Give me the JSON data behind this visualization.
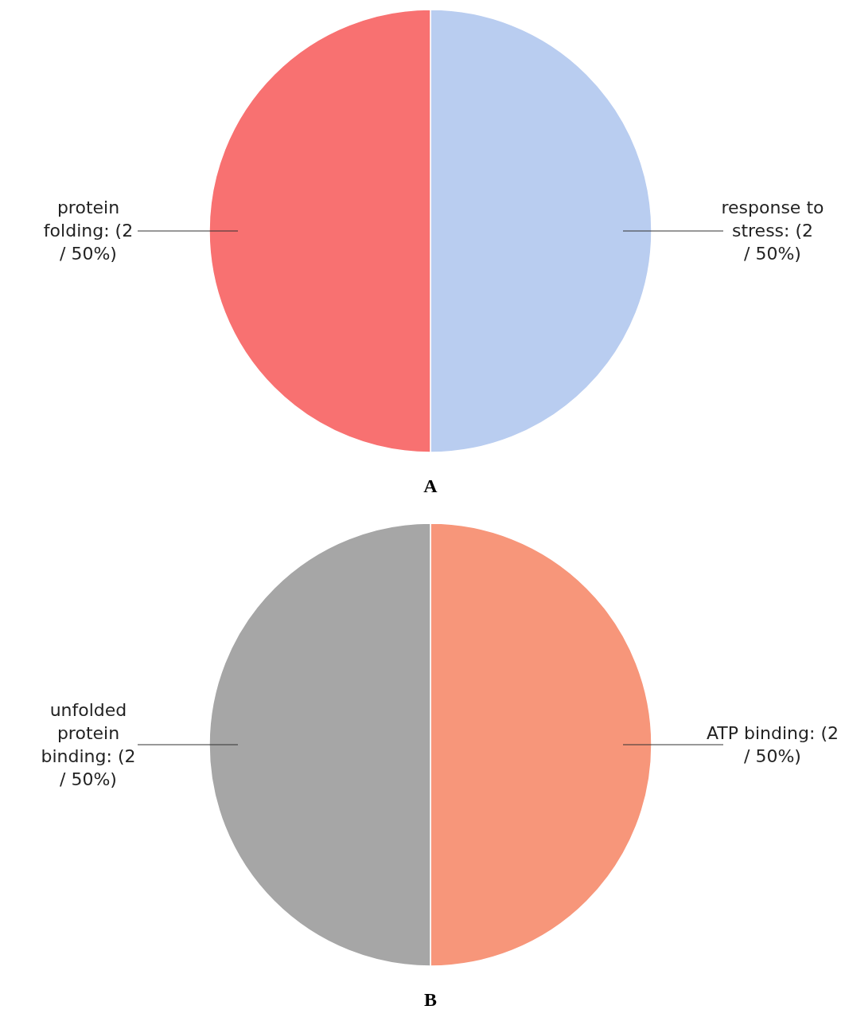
{
  "chart_data": [
    {
      "type": "pie",
      "title": "A",
      "categories": [
        "response to stress",
        "protein folding"
      ],
      "values": [
        2,
        2
      ],
      "colors": [
        "#b9cdf0",
        "#f87171"
      ],
      "value_labels": [
        "(2 / 50%)",
        "(2 / 50%)"
      ]
    },
    {
      "type": "pie",
      "title": "B",
      "categories": [
        "ATP binding",
        "unfolded protein binding"
      ],
      "values": [
        2,
        2
      ],
      "colors": [
        "#f7967a",
        "#a6a6a6"
      ],
      "value_labels": [
        "(2 / 50%)",
        "(2 / 50%)"
      ]
    }
  ]
}
